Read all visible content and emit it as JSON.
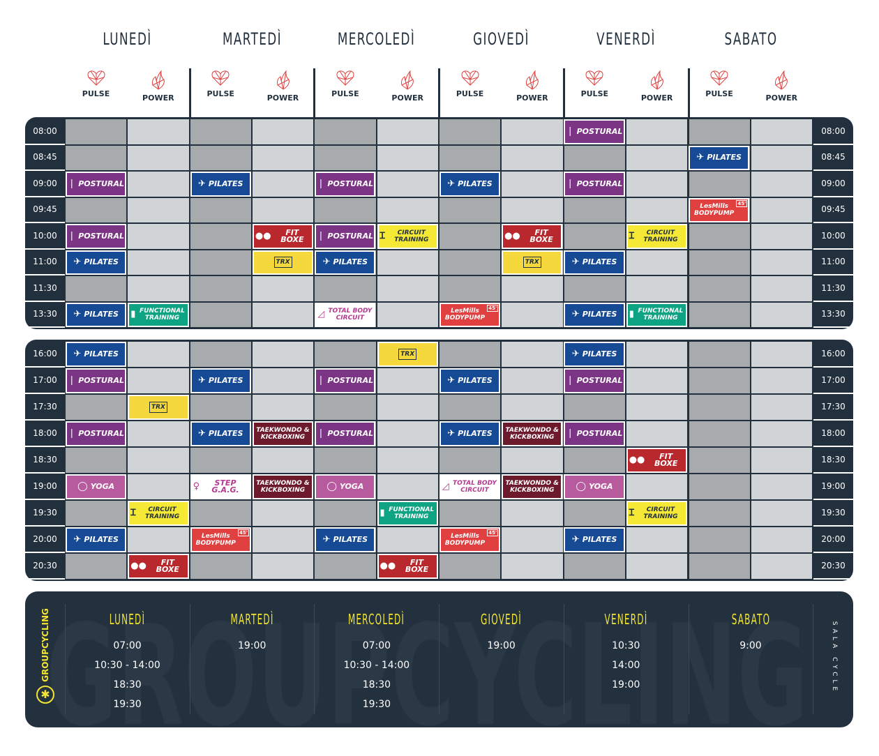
{
  "days": [
    "LUNEDÌ",
    "MARTEDÌ",
    "MERCOLEDÌ",
    "GIOVEDÌ",
    "VENERDÌ",
    "SABATO"
  ],
  "subcolumns": [
    {
      "label": "PULSE",
      "icon": "heart-icon"
    },
    {
      "label": "POWER",
      "icon": "flame-icon"
    }
  ],
  "colors": {
    "navy": "#22303e",
    "pulse_cell": "#a7abae",
    "power_cell": "#d1d4d7",
    "accent_red": "#e0403f",
    "cycling_yellow": "#f2e434"
  },
  "class_types": {
    "POSTURAL": {
      "label": "POSTURAL",
      "color": "#7b3584",
      "icon": "standing-figure-icon"
    },
    "PILATES": {
      "label": "PILATES",
      "color": "#174a95",
      "icon": "pilates-pose-icon"
    },
    "FITBOXE": {
      "label": "FIT BOXE",
      "color": "#b8282c",
      "icon": "boxing-gloves-icon"
    },
    "CIRCUIT": {
      "label": "CIRCUIT TRAINING",
      "color": "#f5e936",
      "icon": "dumbbell-icon"
    },
    "TRX": {
      "label": "TRX",
      "color": "#f5d93c",
      "icon": "trx-icon"
    },
    "FUNCTIONAL": {
      "label": "FUNCTIONAL TRAINING",
      "color": "#0ea383",
      "icon": "kettlebell-icon"
    },
    "BODYPUMP": {
      "label": "LesMills BODYPUMP",
      "color": "#e04040",
      "icon": "lesmills-logo",
      "badge": "45'"
    },
    "TOTALBODY": {
      "label": "TOTAL BODY CIRCUIT",
      "color": "#ffffff",
      "icon": "plank-figure-icon"
    },
    "TKD": {
      "label": "TAEKWONDO & KICKBOXING",
      "color": "#6e1a2d",
      "icon": "kick-figure-icon"
    },
    "YOGA": {
      "label": "YOGA",
      "color": "#b85a9e",
      "icon": "yoga-figure-icon"
    },
    "STEP": {
      "label": "STEP G.A.G.",
      "color": "#ffffff",
      "icon": "step-figure-icon"
    }
  },
  "morning": {
    "times": [
      "08:00",
      "08:45",
      "09:00",
      "09:45",
      "10:00",
      "11:00",
      "11:30",
      "13:30"
    ],
    "slots": [
      {
        "r": 0,
        "c": 8,
        "t": "POSTURAL"
      },
      {
        "r": 1,
        "c": 10,
        "t": "PILATES"
      },
      {
        "r": 2,
        "c": 0,
        "t": "POSTURAL"
      },
      {
        "r": 2,
        "c": 2,
        "t": "PILATES"
      },
      {
        "r": 2,
        "c": 4,
        "t": "POSTURAL"
      },
      {
        "r": 2,
        "c": 6,
        "t": "PILATES"
      },
      {
        "r": 2,
        "c": 8,
        "t": "POSTURAL"
      },
      {
        "r": 3,
        "c": 10,
        "t": "BODYPUMP"
      },
      {
        "r": 4,
        "c": 0,
        "t": "POSTURAL"
      },
      {
        "r": 4,
        "c": 3,
        "t": "FITBOXE"
      },
      {
        "r": 4,
        "c": 4,
        "t": "POSTURAL"
      },
      {
        "r": 4,
        "c": 5,
        "t": "CIRCUIT"
      },
      {
        "r": 4,
        "c": 7,
        "t": "FITBOXE"
      },
      {
        "r": 4,
        "c": 9,
        "t": "CIRCUIT"
      },
      {
        "r": 5,
        "c": 0,
        "t": "PILATES"
      },
      {
        "r": 5,
        "c": 3,
        "t": "TRX"
      },
      {
        "r": 5,
        "c": 4,
        "t": "PILATES"
      },
      {
        "r": 5,
        "c": 7,
        "t": "TRX"
      },
      {
        "r": 5,
        "c": 8,
        "t": "PILATES"
      },
      {
        "r": 7,
        "c": 0,
        "t": "PILATES"
      },
      {
        "r": 7,
        "c": 1,
        "t": "FUNCTIONAL"
      },
      {
        "r": 7,
        "c": 4,
        "t": "TOTALBODY"
      },
      {
        "r": 7,
        "c": 6,
        "t": "BODYPUMP"
      },
      {
        "r": 7,
        "c": 8,
        "t": "PILATES"
      },
      {
        "r": 7,
        "c": 9,
        "t": "FUNCTIONAL"
      }
    ]
  },
  "evening": {
    "times": [
      "16:00",
      "17:00",
      "17:30",
      "18:00",
      "18:30",
      "19:00",
      "19:30",
      "20:00",
      "20:30"
    ],
    "slots": [
      {
        "r": 0,
        "c": 0,
        "t": "PILATES"
      },
      {
        "r": 0,
        "c": 5,
        "t": "TRX"
      },
      {
        "r": 0,
        "c": 8,
        "t": "PILATES"
      },
      {
        "r": 1,
        "c": 0,
        "t": "POSTURAL"
      },
      {
        "r": 1,
        "c": 2,
        "t": "PILATES"
      },
      {
        "r": 1,
        "c": 4,
        "t": "POSTURAL"
      },
      {
        "r": 1,
        "c": 6,
        "t": "PILATES"
      },
      {
        "r": 1,
        "c": 8,
        "t": "POSTURAL"
      },
      {
        "r": 2,
        "c": 1,
        "t": "TRX"
      },
      {
        "r": 3,
        "c": 0,
        "t": "POSTURAL"
      },
      {
        "r": 3,
        "c": 2,
        "t": "PILATES"
      },
      {
        "r": 3,
        "c": 3,
        "t": "TKD"
      },
      {
        "r": 3,
        "c": 4,
        "t": "POSTURAL"
      },
      {
        "r": 3,
        "c": 6,
        "t": "PILATES"
      },
      {
        "r": 3,
        "c": 7,
        "t": "TKD"
      },
      {
        "r": 3,
        "c": 8,
        "t": "POSTURAL"
      },
      {
        "r": 4,
        "c": 9,
        "t": "FITBOXE"
      },
      {
        "r": 5,
        "c": 0,
        "t": "YOGA"
      },
      {
        "r": 5,
        "c": 2,
        "t": "STEP"
      },
      {
        "r": 5,
        "c": 3,
        "t": "TKD"
      },
      {
        "r": 5,
        "c": 4,
        "t": "YOGA"
      },
      {
        "r": 5,
        "c": 6,
        "t": "TOTALBODY"
      },
      {
        "r": 5,
        "c": 7,
        "t": "TKD"
      },
      {
        "r": 5,
        "c": 8,
        "t": "YOGA"
      },
      {
        "r": 6,
        "c": 1,
        "t": "CIRCUIT"
      },
      {
        "r": 6,
        "c": 5,
        "t": "FUNCTIONAL"
      },
      {
        "r": 6,
        "c": 9,
        "t": "CIRCUIT"
      },
      {
        "r": 7,
        "c": 0,
        "t": "PILATES"
      },
      {
        "r": 7,
        "c": 2,
        "t": "BODYPUMP"
      },
      {
        "r": 7,
        "c": 4,
        "t": "PILATES"
      },
      {
        "r": 7,
        "c": 6,
        "t": "BODYPUMP"
      },
      {
        "r": 7,
        "c": 8,
        "t": "PILATES"
      },
      {
        "r": 8,
        "c": 1,
        "t": "FITBOXE"
      },
      {
        "r": 8,
        "c": 5,
        "t": "FITBOXE"
      }
    ]
  },
  "cycling": {
    "brand": "GROUPCYCLING",
    "watermark": "GROUPCYCLING",
    "room": "SALA CYCLE",
    "days": [
      {
        "day": "LUNEDÌ",
        "times": [
          "07:00",
          "10:30 - 14:00",
          "18:30",
          "19:30"
        ]
      },
      {
        "day": "MARTEDÌ",
        "times": [
          "19:00"
        ]
      },
      {
        "day": "MERCOLEDÌ",
        "times": [
          "07:00",
          "10:30 - 14:00",
          "18:30",
          "19:30"
        ]
      },
      {
        "day": "GIOVEDÌ",
        "times": [
          "19:00"
        ]
      },
      {
        "day": "VENERDÌ",
        "times": [
          "10:30",
          "14:00",
          "19:00"
        ]
      },
      {
        "day": "SABATO",
        "times": [
          "9:00"
        ]
      }
    ]
  }
}
